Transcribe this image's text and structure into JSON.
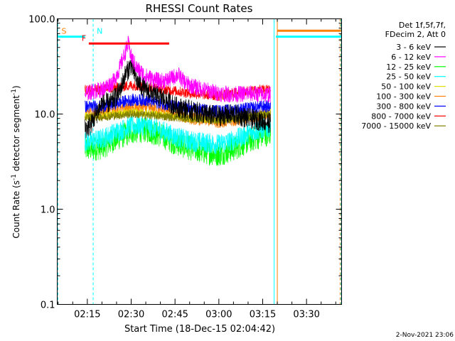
{
  "chart_data": {
    "type": "line",
    "title": "RHESSI Count Rates",
    "xlabel": "Start Time (18-Dec-15 02:04:42)",
    "ylabel_parts": {
      "pre": "Count Rate (s",
      "sup1": "-1",
      "mid": " detector segment",
      "sup2": "-1",
      "post": ")"
    },
    "y_scale": "log",
    "ylim": [
      0.1,
      100
    ],
    "y_ticks": [
      {
        "value": 0.1,
        "label": "0.1"
      },
      {
        "value": 1,
        "label": "1.0"
      },
      {
        "value": 10,
        "label": "10.0"
      },
      {
        "value": 100,
        "label": "100.0"
      }
    ],
    "xlim_minutes": [
      124.7,
      222.0
    ],
    "x_ticks": [
      {
        "minutes": 135,
        "label": "02:15"
      },
      {
        "minutes": 150,
        "label": "02:30"
      },
      {
        "minutes": 165,
        "label": "02:45"
      },
      {
        "minutes": 180,
        "label": "03:00"
      },
      {
        "minutes": 195,
        "label": "03:15"
      },
      {
        "minutes": 210,
        "label": "03:30"
      }
    ],
    "legend_header": [
      "Det 1f,5f,7f,",
      "FDecim 2, Att 0"
    ],
    "legend_position": "right",
    "series": [
      {
        "name": "3 - 6 keV",
        "color": "#000000",
        "noise": 0.05,
        "order": 7,
        "x": [
          134.2,
          136,
          140,
          143,
          146,
          148,
          150,
          152,
          155,
          158,
          162,
          165,
          170,
          175,
          180,
          185,
          190,
          195,
          197.7
        ],
        "y": [
          7,
          7.5,
          13,
          13,
          17,
          26,
          33,
          22,
          18,
          16,
          14,
          12,
          11,
          10,
          9.5,
          10,
          9,
          8.5,
          8
        ]
      },
      {
        "name": "6 - 12 keV",
        "color": "#ff00ff",
        "noise": 0.04,
        "order": 8,
        "x": [
          134.2,
          136,
          140,
          144,
          146,
          148,
          149,
          150,
          152,
          155,
          158,
          160,
          163,
          166,
          168,
          170,
          175,
          180,
          185,
          190,
          195,
          197.7
        ],
        "y": [
          16,
          17,
          18,
          22,
          30,
          45,
          55,
          40,
          30,
          25,
          23,
          22,
          23,
          26,
          22,
          20,
          18,
          16.5,
          16,
          16.5,
          16,
          16
        ]
      },
      {
        "name": "12 - 25 keV",
        "color": "#00ff00",
        "noise": 0.06,
        "order": 0,
        "x": [
          134.2,
          137,
          140,
          145,
          150,
          155,
          160,
          165,
          170,
          175,
          180,
          185,
          190,
          195,
          197.7
        ],
        "y": [
          4.3,
          4.3,
          4.5,
          5.5,
          6.5,
          6.8,
          6,
          5,
          4.4,
          4,
          3.8,
          4.3,
          5.2,
          6,
          6.3
        ]
      },
      {
        "name": "25 - 50 keV",
        "color": "#00ffff",
        "noise": 0.05,
        "order": 1,
        "x": [
          134.2,
          137,
          140,
          145,
          150,
          155,
          160,
          165,
          170,
          175,
          180,
          185,
          190,
          195,
          197.7
        ],
        "y": [
          5.2,
          5.2,
          5.5,
          6.5,
          7.5,
          7.6,
          6.8,
          5.8,
          5.2,
          5,
          4.8,
          5.3,
          6.2,
          7,
          7.3
        ]
      },
      {
        "name": "50 - 100 keV",
        "color": "#dfdf00",
        "noise": 0.02,
        "order": 3,
        "x": [
          134.2,
          140,
          150,
          160,
          170,
          180,
          190,
          197.7
        ],
        "y": [
          9.5,
          9.6,
          10.5,
          9.8,
          9,
          8.7,
          9.3,
          10.5
        ]
      },
      {
        "name": "100 - 300 keV",
        "color": "#ff7f00",
        "noise": 0.03,
        "order": 2,
        "x": [
          134.2,
          140,
          145,
          150,
          155,
          160,
          165,
          170,
          175,
          180,
          185,
          190,
          195,
          197.7
        ],
        "y": [
          10,
          10,
          10.8,
          11.5,
          11.8,
          11,
          10,
          9,
          8.7,
          8.3,
          8.5,
          9.2,
          9.8,
          10
        ]
      },
      {
        "name": "300 - 800 keV",
        "color": "#0000ff",
        "noise": 0.03,
        "order": 5,
        "x": [
          134.2,
          140,
          145,
          150,
          155,
          160,
          165,
          170,
          175,
          180,
          185,
          190,
          195,
          197.7
        ],
        "y": [
          12,
          12,
          13,
          14,
          14,
          13,
          12,
          11.5,
          11,
          10.8,
          11,
          11.5,
          12,
          12
        ]
      },
      {
        "name": "800 - 7000 keV",
        "color": "#ff0000",
        "noise": 0.025,
        "order": 6,
        "x": [
          134.2,
          140,
          145,
          150,
          155,
          160,
          165,
          170,
          175,
          180,
          185,
          190,
          195,
          197.7
        ],
        "y": [
          18,
          18,
          19,
          20,
          19.5,
          18.5,
          17.5,
          16.5,
          16,
          15.5,
          16.5,
          17.5,
          18,
          18
        ]
      },
      {
        "name": "7000 - 15000 keV",
        "color": "#7f7f00",
        "noise": 0.02,
        "order": 4,
        "x": [
          134.2,
          140,
          150,
          160,
          170,
          180,
          190,
          197.7
        ],
        "y": [
          9.2,
          9.3,
          10,
          9.5,
          8.9,
          8.6,
          9.2,
          10.2
        ]
      }
    ],
    "flag_bars": [
      {
        "label": "S",
        "label_color": "#ff7f00",
        "color": "#00ffff",
        "x0": 124.7,
        "x1": 134.2,
        "y": 65
      },
      {
        "label": "N",
        "label_color": "#00ffff",
        "color": "#00ffff",
        "x0": 199.5,
        "x1": 222.0,
        "y": 65
      },
      {
        "label": "",
        "label_color": "#ff7f00",
        "color": "#ff7f00",
        "x0": 200.0,
        "x1": 221.8,
        "y": 75
      },
      {
        "label": "F",
        "label_color": "#ff0000",
        "color": "#ff0000",
        "x0": 135.5,
        "x1": 163.0,
        "y": 55
      }
    ],
    "vlines": [
      {
        "x": 124.9,
        "color": "#00ffff",
        "dashed": true
      },
      {
        "x": 137.0,
        "color": "#00ffff",
        "dashed": true
      },
      {
        "x": 198.9,
        "color": "#00ffff",
        "dashed": false
      },
      {
        "x": 200.0,
        "color": "#ff7f00",
        "dashed": false
      },
      {
        "x": 221.5,
        "color": "#ff7f00",
        "dashed": true
      },
      {
        "x": 221.8,
        "color": "#00ffff",
        "dashed": true
      }
    ]
  },
  "footer_date": "2-Nov-2021 23:06"
}
